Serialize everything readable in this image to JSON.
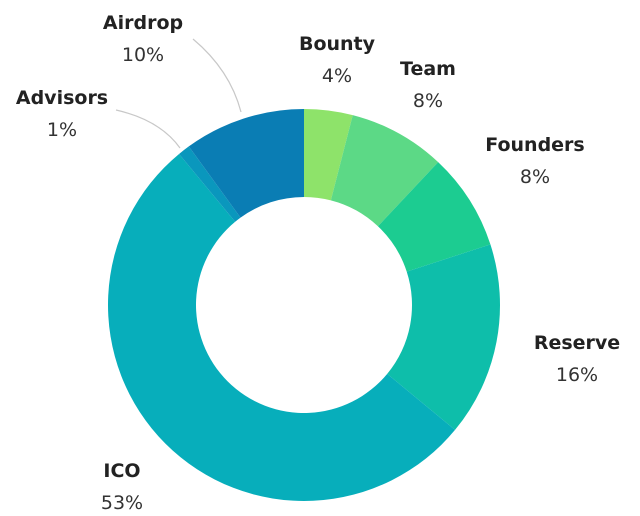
{
  "chart_data": {
    "type": "pie",
    "variant": "donut",
    "legend": "none",
    "slices": [
      {
        "label": "Bounty",
        "value": 4,
        "value_label": "4%",
        "color": "#8ee36a"
      },
      {
        "label": "Team",
        "value": 8,
        "value_label": "8%",
        "color": "#5cd986"
      },
      {
        "label": "Founders",
        "value": 8,
        "value_label": "8%",
        "color": "#1ccc91"
      },
      {
        "label": "Reserve",
        "value": 16,
        "value_label": "16%",
        "color": "#0ebeaa"
      },
      {
        "label": "ICO",
        "value": 53,
        "value_label": "53%",
        "color": "#07aebb"
      },
      {
        "label": "Advisors",
        "value": 1,
        "value_label": "1%",
        "color": "#0a97bd"
      },
      {
        "label": "Airdrop",
        "value": 10,
        "value_label": "10%",
        "color": "#0a7db4"
      }
    ]
  }
}
